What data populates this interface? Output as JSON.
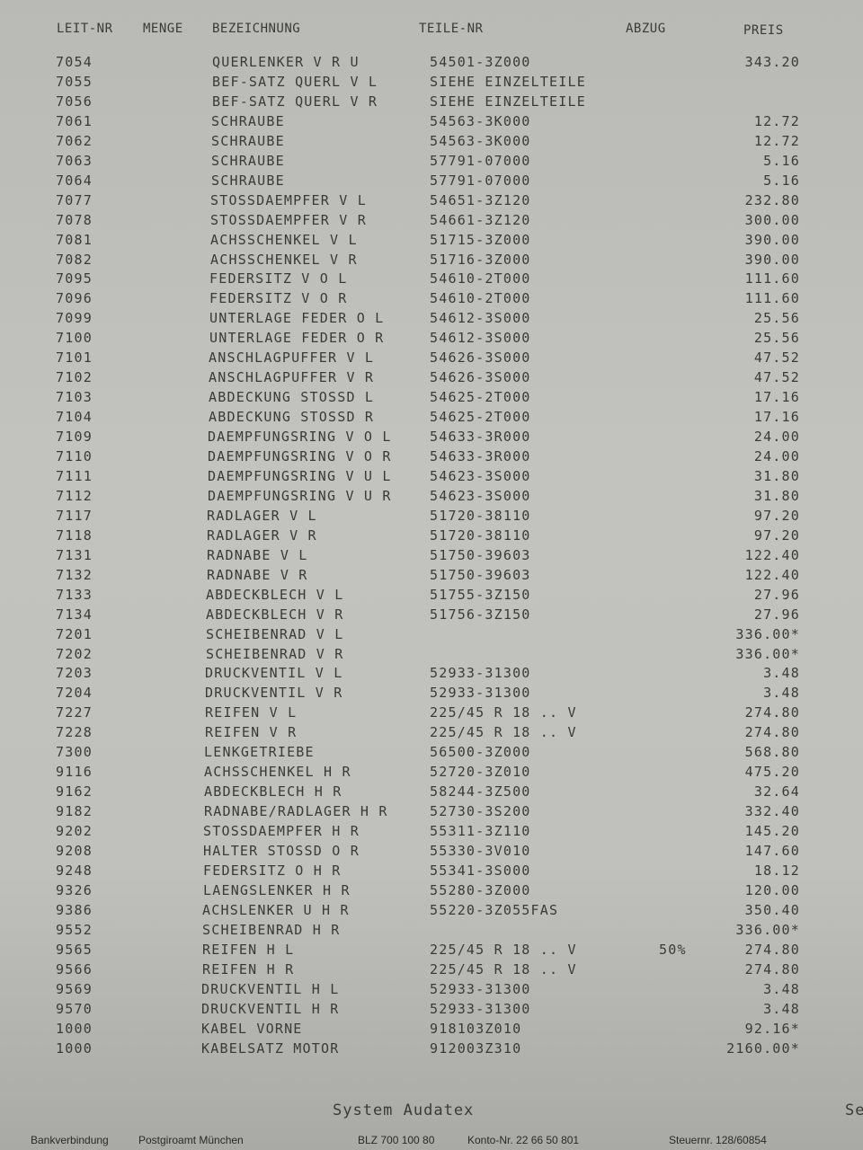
{
  "columns": {
    "leit_nr": "LEIT-NR",
    "menge": "MENGE",
    "bezeichnung": "BEZEICHNUNG",
    "teile_nr": "TEILE-NR",
    "abzug": "ABZUG",
    "preis": "PREIS"
  },
  "rows": [
    {
      "nr": "7054",
      "bez": "QUERLENKER V R U",
      "teil": "54501-3Z000",
      "abzug": "",
      "preis": "343.20"
    },
    {
      "nr": "7055",
      "bez": "BEF-SATZ QUERL V L",
      "teil": "SIEHE EINZELTEILE",
      "abzug": "",
      "preis": ""
    },
    {
      "nr": "7056",
      "bez": "BEF-SATZ QUERL V R",
      "teil": "SIEHE EINZELTEILE",
      "abzug": "",
      "preis": ""
    },
    {
      "nr": "7061",
      "bez": "SCHRAUBE",
      "teil": "54563-3K000",
      "abzug": "",
      "preis": "12.72"
    },
    {
      "nr": "7062",
      "bez": "SCHRAUBE",
      "teil": "54563-3K000",
      "abzug": "",
      "preis": "12.72"
    },
    {
      "nr": "7063",
      "bez": "SCHRAUBE",
      "teil": "57791-07000",
      "abzug": "",
      "preis": "5.16"
    },
    {
      "nr": "7064",
      "bez": "SCHRAUBE",
      "teil": "57791-07000",
      "abzug": "",
      "preis": "5.16"
    },
    {
      "nr": "7077",
      "bez": "STOSSDAEMPFER V L",
      "teil": "54651-3Z120",
      "abzug": "",
      "preis": "232.80"
    },
    {
      "nr": "7078",
      "bez": "STOSSDAEMPFER V R",
      "teil": "54661-3Z120",
      "abzug": "",
      "preis": "300.00"
    },
    {
      "nr": "7081",
      "bez": "ACHSSCHENKEL V L",
      "teil": "51715-3Z000",
      "abzug": "",
      "preis": "390.00"
    },
    {
      "nr": "7082",
      "bez": "ACHSSCHENKEL V R",
      "teil": "51716-3Z000",
      "abzug": "",
      "preis": "390.00"
    },
    {
      "nr": "7095",
      "bez": "FEDERSITZ V O L",
      "teil": "54610-2T000",
      "abzug": "",
      "preis": "111.60"
    },
    {
      "nr": "7096",
      "bez": "FEDERSITZ V O R",
      "teil": "54610-2T000",
      "abzug": "",
      "preis": "111.60"
    },
    {
      "nr": "7099",
      "bez": "UNTERLAGE FEDER O L",
      "teil": "54612-3S000",
      "abzug": "",
      "preis": "25.56"
    },
    {
      "nr": "7100",
      "bez": "UNTERLAGE FEDER O R",
      "teil": "54612-3S000",
      "abzug": "",
      "preis": "25.56"
    },
    {
      "nr": "7101",
      "bez": "ANSCHLAGPUFFER V L",
      "teil": "54626-3S000",
      "abzug": "",
      "preis": "47.52"
    },
    {
      "nr": "7102",
      "bez": "ANSCHLAGPUFFER V R",
      "teil": "54626-3S000",
      "abzug": "",
      "preis": "47.52"
    },
    {
      "nr": "7103",
      "bez": "ABDECKUNG STOSSD L",
      "teil": "54625-2T000",
      "abzug": "",
      "preis": "17.16"
    },
    {
      "nr": "7104",
      "bez": "ABDECKUNG STOSSD R",
      "teil": "54625-2T000",
      "abzug": "",
      "preis": "17.16"
    },
    {
      "nr": "7109",
      "bez": "DAEMPFUNGSRING V O L",
      "teil": "54633-3R000",
      "abzug": "",
      "preis": "24.00"
    },
    {
      "nr": "7110",
      "bez": "DAEMPFUNGSRING V O R",
      "teil": "54633-3R000",
      "abzug": "",
      "preis": "24.00"
    },
    {
      "nr": "7111",
      "bez": "DAEMPFUNGSRING V U L",
      "teil": "54623-3S000",
      "abzug": "",
      "preis": "31.80"
    },
    {
      "nr": "7112",
      "bez": "DAEMPFUNGSRING V U R",
      "teil": "54623-3S000",
      "abzug": "",
      "preis": "31.80"
    },
    {
      "nr": "7117",
      "bez": "RADLAGER V L",
      "teil": "51720-38110",
      "abzug": "",
      "preis": "97.20"
    },
    {
      "nr": "7118",
      "bez": "RADLAGER V R",
      "teil": "51720-38110",
      "abzug": "",
      "preis": "97.20"
    },
    {
      "nr": "7131",
      "bez": "RADNABE V L",
      "teil": "51750-39603",
      "abzug": "",
      "preis": "122.40"
    },
    {
      "nr": "7132",
      "bez": "RADNABE V R",
      "teil": "51750-39603",
      "abzug": "",
      "preis": "122.40"
    },
    {
      "nr": "7133",
      "bez": "ABDECKBLECH V L",
      "teil": "51755-3Z150",
      "abzug": "",
      "preis": "27.96"
    },
    {
      "nr": "7134",
      "bez": "ABDECKBLECH V R",
      "teil": "51756-3Z150",
      "abzug": "",
      "preis": "27.96"
    },
    {
      "nr": "7201",
      "bez": "SCHEIBENRAD V L",
      "teil": "",
      "abzug": "",
      "preis": "336.00*"
    },
    {
      "nr": "7202",
      "bez": "SCHEIBENRAD V R",
      "teil": "",
      "abzug": "",
      "preis": "336.00*"
    },
    {
      "nr": "7203",
      "bez": "DRUCKVENTIL V L",
      "teil": "52933-31300",
      "abzug": "",
      "preis": "3.48"
    },
    {
      "nr": "7204",
      "bez": "DRUCKVENTIL V R",
      "teil": "52933-31300",
      "abzug": "",
      "preis": "3.48"
    },
    {
      "nr": "7227",
      "bez": "REIFEN V L",
      "teil": "225/45 R 18 .. V",
      "abzug": "",
      "preis": "274.80"
    },
    {
      "nr": "7228",
      "bez": "REIFEN V R",
      "teil": "225/45 R 18 .. V",
      "abzug": "",
      "preis": "274.80"
    },
    {
      "nr": "7300",
      "bez": "LENKGETRIEBE",
      "teil": "56500-3Z000",
      "abzug": "",
      "preis": "568.80"
    },
    {
      "nr": "9116",
      "bez": "ACHSSCHENKEL H R",
      "teil": "52720-3Z010",
      "abzug": "",
      "preis": "475.20"
    },
    {
      "nr": "9162",
      "bez": "ABDECKBLECH H R",
      "teil": "58244-3Z500",
      "abzug": "",
      "preis": "32.64"
    },
    {
      "nr": "9182",
      "bez": "RADNABE/RADLAGER H R",
      "teil": "52730-3S200",
      "abzug": "",
      "preis": "332.40"
    },
    {
      "nr": "9202",
      "bez": "STOSSDAEMPFER H R",
      "teil": "55311-3Z110",
      "abzug": "",
      "preis": "145.20"
    },
    {
      "nr": "9208",
      "bez": "HALTER STOSSD O R",
      "teil": "55330-3V010",
      "abzug": "",
      "preis": "147.60"
    },
    {
      "nr": "9248",
      "bez": "FEDERSITZ O H R",
      "teil": "55341-3S000",
      "abzug": "",
      "preis": "18.12"
    },
    {
      "nr": "9326",
      "bez": "LAENGSLENKER H R",
      "teil": "55280-3Z000",
      "abzug": "",
      "preis": "120.00"
    },
    {
      "nr": "9386",
      "bez": "ACHSLENKER U H R",
      "teil": "55220-3Z055FAS",
      "abzug": "",
      "preis": "350.40"
    },
    {
      "nr": "9552",
      "bez": "SCHEIBENRAD H R",
      "teil": "",
      "abzug": "",
      "preis": "336.00*"
    },
    {
      "nr": "9565",
      "bez": "REIFEN H L",
      "teil": "225/45 R 18 .. V",
      "abzug": "50%",
      "preis": "274.80"
    },
    {
      "nr": "9566",
      "bez": "REIFEN H R",
      "teil": "225/45 R 18 .. V",
      "abzug": "",
      "preis": "274.80"
    },
    {
      "nr": "9569",
      "bez": "DRUCKVENTIL H L",
      "teil": "52933-31300",
      "abzug": "",
      "preis": "3.48"
    },
    {
      "nr": "9570",
      "bez": "DRUCKVENTIL H R",
      "teil": "52933-31300",
      "abzug": "",
      "preis": "3.48"
    },
    {
      "nr": "1000",
      "bez": "KABEL VORNE",
      "teil": "918103Z010",
      "abzug": "",
      "preis": "92.16*"
    },
    {
      "nr": "1000",
      "bez": "KABELSATZ MOTOR",
      "teil": "912003Z310",
      "abzug": "",
      "preis": "2160.00*"
    }
  ],
  "footer": {
    "system": "System Audatex",
    "right_fragment": "Se",
    "bank_label": "Bankverbindung",
    "bank_name": "Postgiroamt München",
    "blz": "BLZ 700 100 80",
    "konto": "Konto-Nr. 22 66 50 801",
    "steuer": "Steuernr. 128/60854"
  }
}
